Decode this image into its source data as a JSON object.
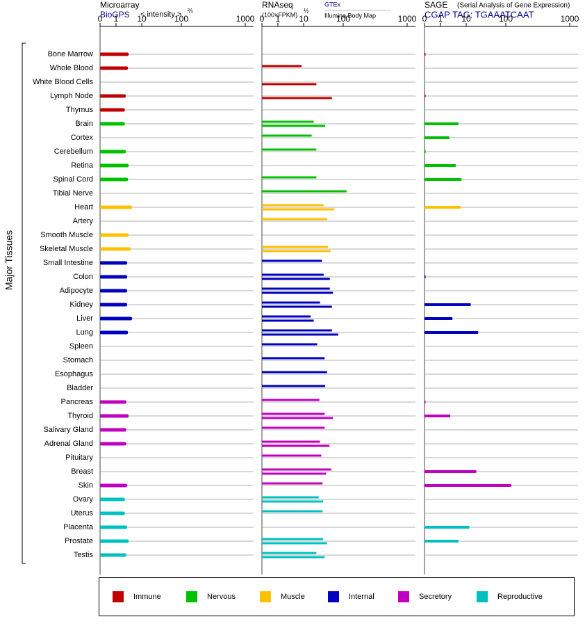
{
  "chart_data": {
    "type": "bar",
    "orientation": "horizontal",
    "ylabel": "Major Tissues",
    "categories": [
      "Bone Marrow",
      "Whole Blood",
      "White Blood Cells",
      "Lymph Node",
      "Thymus",
      "Brain",
      "Cortex",
      "Cerebellum",
      "Retina",
      "Spinal Cord",
      "Tibial Nerve",
      "Heart",
      "Artery",
      "Smooth Muscle",
      "Skeletal Muscle",
      "Small Intestine",
      "Colon",
      "Adipocyte",
      "Kidney",
      "Liver",
      "Lung",
      "Spleen",
      "Stomach",
      "Esophagus",
      "Bladder",
      "Pancreas",
      "Thyroid",
      "Salivary Gland",
      "Adrenal Gland",
      "Pituitary",
      "Breast",
      "Skin",
      "Ovary",
      "Uterus",
      "Placenta",
      "Prostate",
      "Testis"
    ],
    "category_group": [
      0,
      0,
      0,
      0,
      0,
      1,
      1,
      1,
      1,
      1,
      1,
      2,
      2,
      2,
      2,
      3,
      3,
      3,
      3,
      3,
      3,
      3,
      3,
      3,
      3,
      4,
      4,
      4,
      4,
      4,
      4,
      4,
      5,
      5,
      5,
      5,
      5
    ],
    "groups": [
      {
        "name": "Immune",
        "color": "#c00000"
      },
      {
        "name": "Nervous",
        "color": "#00c000"
      },
      {
        "name": "Muscle",
        "color": "#ffc000"
      },
      {
        "name": "Internal",
        "color": "#0000c0"
      },
      {
        "name": "Secretory",
        "color": "#c000c0"
      },
      {
        "name": "Reproductive",
        "color": "#00c0c0"
      }
    ],
    "xlim": [
      0,
      1000
    ],
    "xticks": [
      0,
      1,
      10,
      100,
      1000
    ],
    "grid": true,
    "panels": [
      {
        "title": "Microarray",
        "scale_label": "< intensity >",
        "scale_power": "⅔",
        "series": [
          {
            "name": "BioGPS",
            "values": [
              3.1,
              2.9,
              null,
              2.4,
              2.2,
              2.2,
              null,
              2.4,
              3.1,
              2.9,
              null,
              4.2,
              null,
              3.1,
              3.7,
              2.7,
              2.7,
              2.7,
              2.7,
              4.2,
              2.9,
              null,
              null,
              null,
              null,
              2.5,
              3.1,
              2.5,
              2.5,
              null,
              null,
              2.7,
              2.2,
              2.2,
              2.7,
              3.1,
              2.5
            ]
          }
        ]
      },
      {
        "title": "RNAseq",
        "scale_label": "(100×FPKM)",
        "scale_power": "½",
        "series": [
          {
            "name": "GTEx",
            "values": [
              null,
              8.3,
              null,
              null,
              null,
              18,
              16,
              21,
              null,
              21,
              113,
              32,
              39,
              null,
              41,
              29,
              32,
              46,
              26,
              15,
              52,
              22,
              34,
              39,
              35,
              25,
              34,
              34,
              26,
              28,
              50,
              30,
              24,
              30,
              null,
              31,
              21
            ]
          },
          {
            "name": "Illumina Body Map",
            "values": [
              null,
              null,
              21,
              52,
              null,
              35,
              null,
              null,
              null,
              null,
              null,
              59,
              null,
              null,
              48,
              null,
              46,
              55,
              52,
              18,
              75,
              null,
              null,
              null,
              null,
              null,
              55,
              null,
              45,
              null,
              37,
              null,
              31,
              null,
              null,
              39,
              34
            ]
          }
        ]
      },
      {
        "title": "SAGE",
        "subtitle": "(Serial Analysis of Gene Expression)",
        "series": [
          {
            "name": "CGAP TAG: TGAAATCAAT",
            "values": [
              0.05,
              null,
              null,
              0.05,
              null,
              5.0,
              2.2,
              0.05,
              3.9,
              6.6,
              null,
              6.1,
              null,
              null,
              null,
              null,
              0.05,
              null,
              13,
              2.9,
              20,
              null,
              null,
              null,
              null,
              0.05,
              2.4,
              null,
              null,
              null,
              18,
              122,
              null,
              null,
              12,
              5.0,
              null
            ]
          }
        ]
      }
    ]
  }
}
